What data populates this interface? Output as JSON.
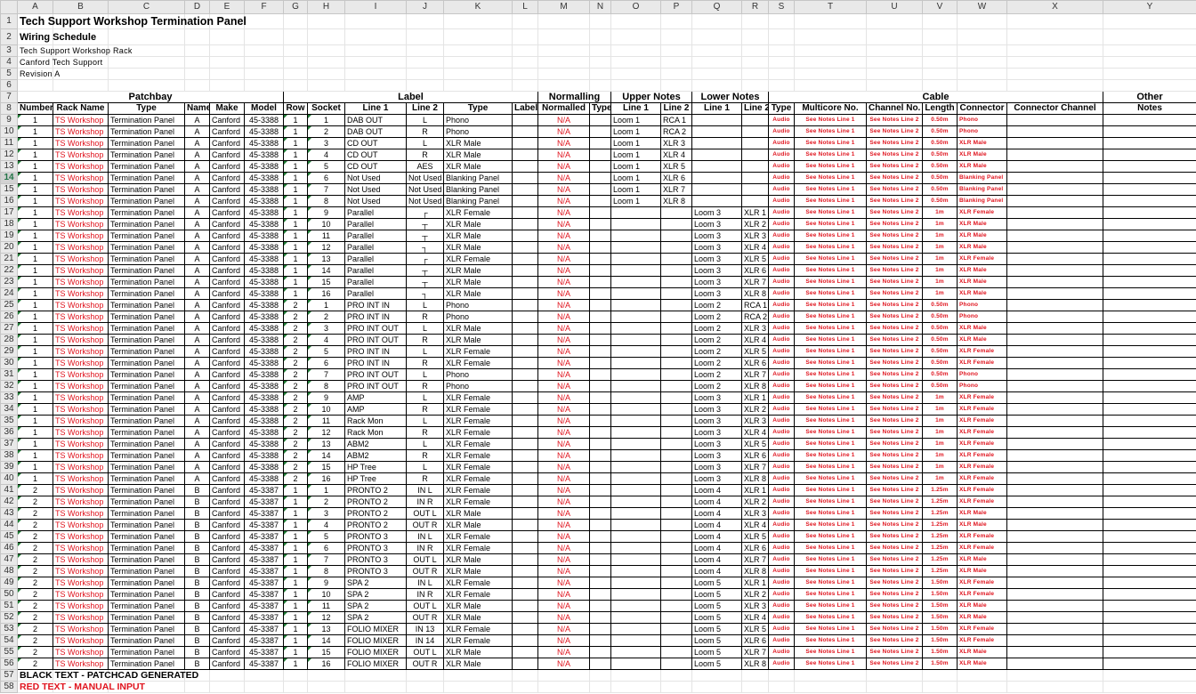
{
  "column_letters": [
    "A",
    "B",
    "C",
    "D",
    "E",
    "F",
    "G",
    "H",
    "I",
    "J",
    "K",
    "L",
    "M",
    "N",
    "O",
    "P",
    "Q",
    "R",
    "S",
    "T",
    "U",
    "V",
    "W",
    "X",
    "Y"
  ],
  "selected_row": 14,
  "title": "Tech Support Workshop Termination Panel",
  "subtitle": "Wiring Schedule",
  "meta": [
    "Tech Support Workshop Rack",
    "Canford Tech Support",
    "Revision A"
  ],
  "groups": {
    "patchbay": "Patchbay",
    "label": "Label",
    "normalling": "Normalling",
    "upper_notes": "Upper Notes",
    "lower_notes": "Lower Notes",
    "cable": "Cable",
    "other": "Other"
  },
  "headers": [
    "Number",
    "Rack Name",
    "Type",
    "Name",
    "Make",
    "Model",
    "Row",
    "Socket",
    "Line 1",
    "Line 2",
    "Type",
    "Label",
    "Normalled",
    "Type",
    "Line 1",
    "Line 2",
    "Line 1",
    "Line 2",
    "Type",
    "Multicore No.",
    "Channel No.",
    "Length",
    "Connector",
    "Connector Channel",
    "Notes"
  ],
  "defaults": {
    "rack_name": "TS Workshop",
    "panel_type": "Termination Panel",
    "make": "Canford",
    "normalled": "N/A",
    "cable_type": "Audio",
    "multicore": "See Notes Line 1",
    "channel": "See Notes Line 2"
  },
  "rows": [
    [
      "1",
      "A",
      "45-3388",
      "1",
      "1",
      "DAB OUT",
      "L",
      "Phono",
      "Loom 1",
      "RCA 1",
      "",
      "",
      "0.50m",
      "Phono"
    ],
    [
      "1",
      "A",
      "45-3388",
      "1",
      "2",
      "DAB OUT",
      "R",
      "Phono",
      "Loom 1",
      "RCA 2",
      "",
      "",
      "0.50m",
      "Phono"
    ],
    [
      "1",
      "A",
      "45-3388",
      "1",
      "3",
      "CD OUT",
      "L",
      "XLR Male",
      "Loom 1",
      "XLR 3",
      "",
      "",
      "0.50m",
      "XLR Male"
    ],
    [
      "1",
      "A",
      "45-3388",
      "1",
      "4",
      "CD OUT",
      "R",
      "XLR Male",
      "Loom 1",
      "XLR 4",
      "",
      "",
      "0.50m",
      "XLR Male"
    ],
    [
      "1",
      "A",
      "45-3388",
      "1",
      "5",
      "CD OUT",
      "AES",
      "XLR Male",
      "Loom 1",
      "XLR 5",
      "",
      "",
      "0.50m",
      "XLR Male"
    ],
    [
      "1",
      "A",
      "45-3388",
      "1",
      "6",
      "Not Used",
      "Not Used",
      "Blanking Panel",
      "Loom 1",
      "XLR 6",
      "",
      "",
      "0.50m",
      "Blanking Panel"
    ],
    [
      "1",
      "A",
      "45-3388",
      "1",
      "7",
      "Not Used",
      "Not Used",
      "Blanking Panel",
      "Loom 1",
      "XLR 7",
      "",
      "",
      "0.50m",
      "Blanking Panel"
    ],
    [
      "1",
      "A",
      "45-3388",
      "1",
      "8",
      "Not Used",
      "Not Used",
      "Blanking Panel",
      "Loom 1",
      "XLR 8",
      "",
      "",
      "0.50m",
      "Blanking Panel"
    ],
    [
      "1",
      "A",
      "45-3388",
      "1",
      "9",
      "Parallel",
      "┌",
      "XLR Female",
      "",
      "",
      "Loom 3",
      "XLR 1",
      "1m",
      "XLR Female"
    ],
    [
      "1",
      "A",
      "45-3388",
      "1",
      "10",
      "Parallel",
      "┬",
      "XLR Male",
      "",
      "",
      "Loom 3",
      "XLR 2",
      "1m",
      "XLR Male"
    ],
    [
      "1",
      "A",
      "45-3388",
      "1",
      "11",
      "Parallel",
      "┬",
      "XLR Male",
      "",
      "",
      "Loom 3",
      "XLR 3",
      "1m",
      "XLR Male"
    ],
    [
      "1",
      "A",
      "45-3388",
      "1",
      "12",
      "Parallel",
      "┐",
      "XLR Male",
      "",
      "",
      "Loom 3",
      "XLR 4",
      "1m",
      "XLR Male"
    ],
    [
      "1",
      "A",
      "45-3388",
      "1",
      "13",
      "Parallel",
      "┌",
      "XLR Female",
      "",
      "",
      "Loom 3",
      "XLR 5",
      "1m",
      "XLR Female"
    ],
    [
      "1",
      "A",
      "45-3388",
      "1",
      "14",
      "Parallel",
      "┬",
      "XLR Male",
      "",
      "",
      "Loom 3",
      "XLR 6",
      "1m",
      "XLR Male"
    ],
    [
      "1",
      "A",
      "45-3388",
      "1",
      "15",
      "Parallel",
      "┬",
      "XLR Male",
      "",
      "",
      "Loom 3",
      "XLR 7",
      "1m",
      "XLR Male"
    ],
    [
      "1",
      "A",
      "45-3388",
      "1",
      "16",
      "Parallel",
      "┐",
      "XLR Male",
      "",
      "",
      "Loom 3",
      "XLR 8",
      "1m",
      "XLR Male"
    ],
    [
      "1",
      "A",
      "45-3388",
      "2",
      "1",
      "PRO INT IN",
      "L",
      "Phono",
      "",
      "",
      "Loom 2",
      "RCA 1",
      "0.50m",
      "Phono"
    ],
    [
      "1",
      "A",
      "45-3388",
      "2",
      "2",
      "PRO INT IN",
      "R",
      "Phono",
      "",
      "",
      "Loom 2",
      "RCA 2",
      "0.50m",
      "Phono"
    ],
    [
      "1",
      "A",
      "45-3388",
      "2",
      "3",
      "PRO INT OUT",
      "L",
      "XLR Male",
      "",
      "",
      "Loom 2",
      "XLR 3",
      "0.50m",
      "XLR Male"
    ],
    [
      "1",
      "A",
      "45-3388",
      "2",
      "4",
      "PRO INT OUT",
      "R",
      "XLR Male",
      "",
      "",
      "Loom 2",
      "XLR 4",
      "0.50m",
      "XLR Male"
    ],
    [
      "1",
      "A",
      "45-3388",
      "2",
      "5",
      "PRO INT IN",
      "L",
      "XLR Female",
      "",
      "",
      "Loom 2",
      "XLR 5",
      "0.50m",
      "XLR Female"
    ],
    [
      "1",
      "A",
      "45-3388",
      "2",
      "6",
      "PRO INT IN",
      "R",
      "XLR Female",
      "",
      "",
      "Loom 2",
      "XLR 6",
      "0.50m",
      "XLR Female"
    ],
    [
      "1",
      "A",
      "45-3388",
      "2",
      "7",
      "PRO INT OUT",
      "L",
      "Phono",
      "",
      "",
      "Loom 2",
      "XLR 7",
      "0.50m",
      "Phono"
    ],
    [
      "1",
      "A",
      "45-3388",
      "2",
      "8",
      "PRO INT OUT",
      "R",
      "Phono",
      "",
      "",
      "Loom 2",
      "XLR 8",
      "0.50m",
      "Phono"
    ],
    [
      "1",
      "A",
      "45-3388",
      "2",
      "9",
      "AMP",
      "L",
      "XLR Female",
      "",
      "",
      "Loom 3",
      "XLR 1",
      "1m",
      "XLR Female"
    ],
    [
      "1",
      "A",
      "45-3388",
      "2",
      "10",
      "AMP",
      "R",
      "XLR Female",
      "",
      "",
      "Loom 3",
      "XLR 2",
      "1m",
      "XLR Female"
    ],
    [
      "1",
      "A",
      "45-3388",
      "2",
      "11",
      "Rack Mon",
      "L",
      "XLR Female",
      "",
      "",
      "Loom 3",
      "XLR 3",
      "1m",
      "XLR Female"
    ],
    [
      "1",
      "A",
      "45-3388",
      "2",
      "12",
      "Rack Mon",
      "R",
      "XLR Female",
      "",
      "",
      "Loom 3",
      "XLR 4",
      "1m",
      "XLR Female"
    ],
    [
      "1",
      "A",
      "45-3388",
      "2",
      "13",
      "ABM2",
      "L",
      "XLR Female",
      "",
      "",
      "Loom 3",
      "XLR 5",
      "1m",
      "XLR Female"
    ],
    [
      "1",
      "A",
      "45-3388",
      "2",
      "14",
      "ABM2",
      "R",
      "XLR Female",
      "",
      "",
      "Loom 3",
      "XLR 6",
      "1m",
      "XLR Female"
    ],
    [
      "1",
      "A",
      "45-3388",
      "2",
      "15",
      "HP Tree",
      "L",
      "XLR Female",
      "",
      "",
      "Loom 3",
      "XLR 7",
      "1m",
      "XLR Female"
    ],
    [
      "1",
      "A",
      "45-3388",
      "2",
      "16",
      "HP Tree",
      "R",
      "XLR Female",
      "",
      "",
      "Loom 3",
      "XLR 8",
      "1m",
      "XLR Female"
    ],
    [
      "2",
      "B",
      "45-3387",
      "1",
      "1",
      "PRONTO 2",
      "IN L",
      "XLR Female",
      "",
      "",
      "Loom 4",
      "XLR 1",
      "1.25m",
      "XLR Female"
    ],
    [
      "2",
      "B",
      "45-3387",
      "1",
      "2",
      "PRONTO 2",
      "IN R",
      "XLR Female",
      "",
      "",
      "Loom 4",
      "XLR 2",
      "1.25m",
      "XLR Female"
    ],
    [
      "2",
      "B",
      "45-3387",
      "1",
      "3",
      "PRONTO 2",
      "OUT L",
      "XLR Male",
      "",
      "",
      "Loom 4",
      "XLR 3",
      "1.25m",
      "XLR Male"
    ],
    [
      "2",
      "B",
      "45-3387",
      "1",
      "4",
      "PRONTO 2",
      "OUT R",
      "XLR Male",
      "",
      "",
      "Loom 4",
      "XLR 4",
      "1.25m",
      "XLR Male"
    ],
    [
      "2",
      "B",
      "45-3387",
      "1",
      "5",
      "PRONTO 3",
      "IN L",
      "XLR Female",
      "",
      "",
      "Loom 4",
      "XLR 5",
      "1.25m",
      "XLR Female"
    ],
    [
      "2",
      "B",
      "45-3387",
      "1",
      "6",
      "PRONTO 3",
      "IN R",
      "XLR Female",
      "",
      "",
      "Loom 4",
      "XLR 6",
      "1.25m",
      "XLR Female"
    ],
    [
      "2",
      "B",
      "45-3387",
      "1",
      "7",
      "PRONTO 3",
      "OUT L",
      "XLR Male",
      "",
      "",
      "Loom 4",
      "XLR 7",
      "1.25m",
      "XLR Male"
    ],
    [
      "2",
      "B",
      "45-3387",
      "1",
      "8",
      "PRONTO 3",
      "OUT R",
      "XLR Male",
      "",
      "",
      "Loom 4",
      "XLR 8",
      "1.25m",
      "XLR Male"
    ],
    [
      "2",
      "B",
      "45-3387",
      "1",
      "9",
      "SPA 2",
      "IN L",
      "XLR Female",
      "",
      "",
      "Loom 5",
      "XLR 1",
      "1.50m",
      "XLR Female"
    ],
    [
      "2",
      "B",
      "45-3387",
      "1",
      "10",
      "SPA 2",
      "IN R",
      "XLR Female",
      "",
      "",
      "Loom 5",
      "XLR 2",
      "1.50m",
      "XLR Female"
    ],
    [
      "2",
      "B",
      "45-3387",
      "1",
      "11",
      "SPA 2",
      "OUT L",
      "XLR Male",
      "",
      "",
      "Loom 5",
      "XLR 3",
      "1.50m",
      "XLR Male"
    ],
    [
      "2",
      "B",
      "45-3387",
      "1",
      "12",
      "SPA 2",
      "OUT R",
      "XLR Male",
      "",
      "",
      "Loom 5",
      "XLR 4",
      "1.50m",
      "XLR Male"
    ],
    [
      "2",
      "B",
      "45-3387",
      "1",
      "13",
      "FOLIO MIXER",
      "IN 13",
      "XLR Female",
      "",
      "",
      "Loom 5",
      "XLR 5",
      "1.50m",
      "XLR Female"
    ],
    [
      "2",
      "B",
      "45-3387",
      "1",
      "14",
      "FOLIO MIXER",
      "IN 14",
      "XLR Female",
      "",
      "",
      "Loom 5",
      "XLR 6",
      "1.50m",
      "XLR Female"
    ],
    [
      "2",
      "B",
      "45-3387",
      "1",
      "15",
      "FOLIO MIXER",
      "OUT L",
      "XLR Male",
      "",
      "",
      "Loom 5",
      "XLR 7",
      "1.50m",
      "XLR Male"
    ],
    [
      "2",
      "B",
      "45-3387",
      "1",
      "16",
      "FOLIO MIXER",
      "OUT R",
      "XLR Male",
      "",
      "",
      "Loom 5",
      "XLR 8",
      "1.50m",
      "XLR Male"
    ]
  ],
  "legend": {
    "black": "BLACK TEXT - PATCHCAD GENERATED",
    "red": "RED TEXT      - MANUAL INPUT"
  },
  "colors": {
    "manual_input": "#e0141e",
    "generated": "#000000",
    "selected_row": "#217346"
  }
}
